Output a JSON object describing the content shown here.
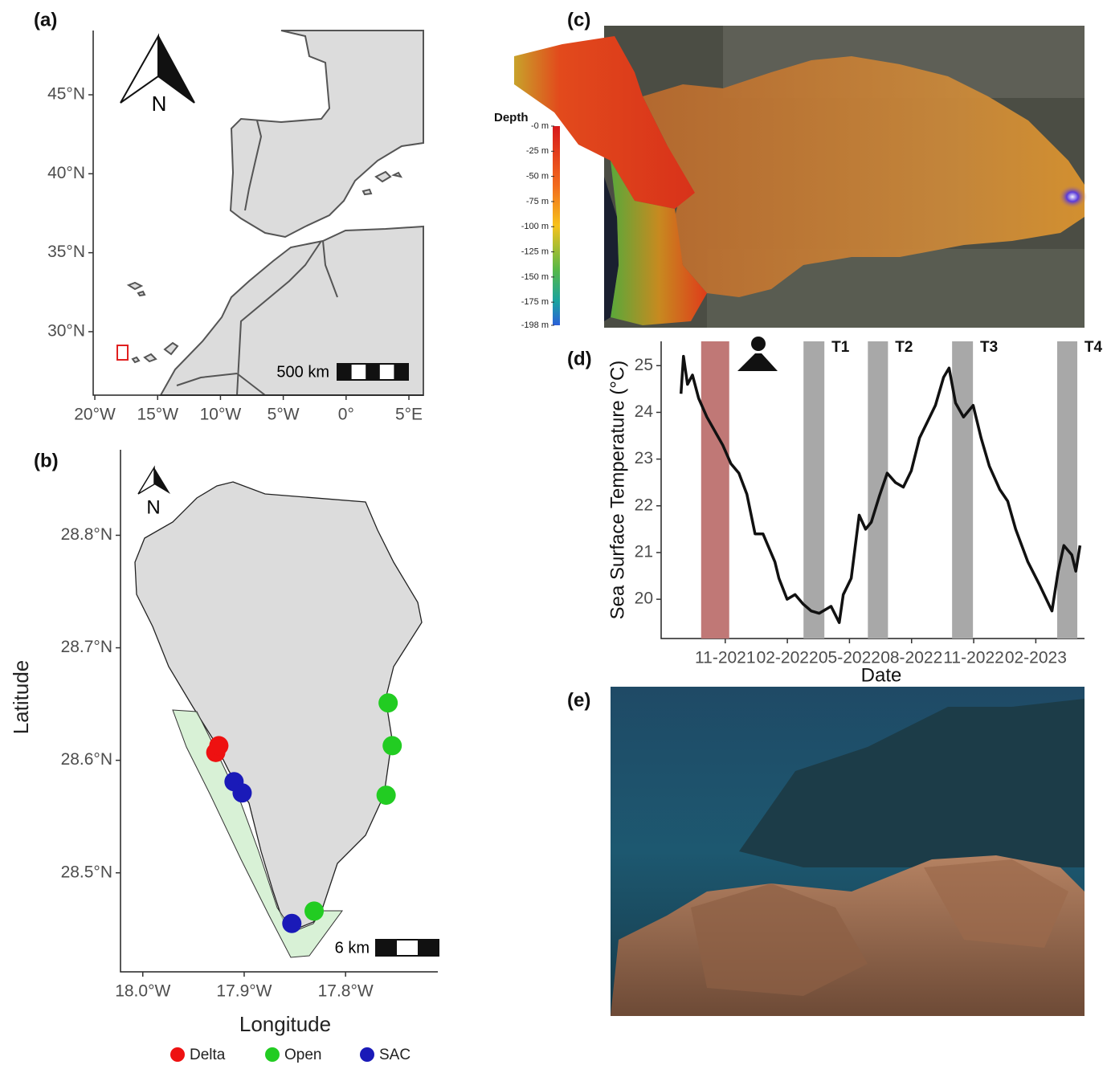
{
  "chart_data": [
    {
      "type": "map",
      "panel": "(a)",
      "north": "N",
      "scale_label": "500 km",
      "xlim": [
        -20.13,
        6.15
      ],
      "ylim": [
        25.98,
        49.07
      ],
      "xticks": [
        {
          "value": -20,
          "label": "20°W"
        },
        {
          "value": -15,
          "label": "15°W"
        },
        {
          "value": -10,
          "label": "10°W"
        },
        {
          "value": -5,
          "label": "5°W"
        },
        {
          "value": 0,
          "label": "0°"
        },
        {
          "value": 5,
          "label": "5°E"
        }
      ],
      "yticks": [
        {
          "value": 30,
          "label": "30°N"
        },
        {
          "value": 35,
          "label": "35°N"
        },
        {
          "value": 40,
          "label": "40°N"
        },
        {
          "value": 45,
          "label": "45°N"
        }
      ]
    },
    {
      "type": "scatter",
      "panel": "(b)",
      "north": "N",
      "scale_label": "6 km",
      "x_label": "Longitude",
      "y_label": "Latitude",
      "xlim": [
        -18.022,
        -17.709
      ],
      "ylim": [
        28.412,
        28.876
      ],
      "xticks": [
        {
          "value": -18.0,
          "label": "18.0°W"
        },
        {
          "value": -17.9,
          "label": "17.9°W"
        },
        {
          "value": -17.8,
          "label": "17.8°W"
        }
      ],
      "yticks": [
        {
          "value": 28.5,
          "label": "28.5°N"
        },
        {
          "value": 28.6,
          "label": "28.6°N"
        },
        {
          "value": 28.7,
          "label": "28.7°N"
        },
        {
          "value": 28.8,
          "label": "28.8°N"
        }
      ],
      "series": [
        {
          "name": "Delta",
          "color": "#ee1111",
          "x": [
            -17.928,
            -17.925
          ],
          "values": [
            28.607,
            28.613
          ]
        },
        {
          "name": "Open",
          "color": "#22cc22",
          "x": [
            -17.758,
            -17.754,
            -17.76,
            -17.831
          ],
          "values": [
            28.651,
            28.613,
            28.569,
            28.466
          ]
        },
        {
          "name": "SAC",
          "color": "#1a1ab8",
          "x": [
            -17.91,
            -17.902,
            -17.853
          ],
          "values": [
            28.581,
            28.571,
            28.455
          ]
        }
      ]
    },
    {
      "type": "image",
      "panel": "(c)",
      "legend_title": "Depth",
      "clim": [
        -198,
        0
      ],
      "colorbar_ticks": [
        {
          "value": 0,
          "label": "-0 m"
        },
        {
          "value": -25,
          "label": "-25 m"
        },
        {
          "value": -50,
          "label": "-50 m"
        },
        {
          "value": -75,
          "label": "-75 m"
        },
        {
          "value": -100,
          "label": "-100 m"
        },
        {
          "value": -125,
          "label": "-125 m"
        },
        {
          "value": -150,
          "label": "-150 m"
        },
        {
          "value": -175,
          "label": "-175 m"
        },
        {
          "value": -198,
          "label": "-198 m"
        }
      ]
    },
    {
      "type": "line",
      "panel": "(d)",
      "x_label": "Date",
      "y_label": "Sea Surface Temperature (°C)",
      "color": "#111111",
      "xlim": [
        2021.575,
        2023.279
      ],
      "ylim": [
        19.16,
        25.52
      ],
      "xticks": [
        {
          "value": 2021.833,
          "label": "11-2021"
        },
        {
          "value": 2022.083,
          "label": "02-2022"
        },
        {
          "value": 2022.333,
          "label": "05-2022"
        },
        {
          "value": 2022.583,
          "label": "08-2022"
        },
        {
          "value": 2022.833,
          "label": "11-2022"
        },
        {
          "value": 2023.083,
          "label": "02-2023"
        }
      ],
      "yticks": [
        20,
        21,
        22,
        23,
        24,
        25
      ],
      "eruption_period": [
        2021.736,
        2021.849
      ],
      "sampling_periods": [
        {
          "label": "T1",
          "range": [
            2022.148,
            2022.232
          ]
        },
        {
          "label": "T2",
          "range": [
            2022.407,
            2022.488
          ]
        },
        {
          "label": "T3",
          "range": [
            2022.746,
            2022.83
          ]
        },
        {
          "label": "T4",
          "range": [
            2023.169,
            2023.25
          ]
        }
      ],
      "x": [
        2021.655,
        2021.665,
        2021.681,
        2021.701,
        2021.726,
        2021.759,
        2021.791,
        2021.823,
        2021.856,
        2021.888,
        2021.92,
        2021.953,
        2021.985,
        2022.001,
        2022.033,
        2022.049,
        2022.082,
        2022.114,
        2022.146,
        2022.179,
        2022.211,
        2022.259,
        2022.292,
        2022.308,
        2022.34,
        2022.372,
        2022.398,
        2022.421,
        2022.453,
        2022.485,
        2022.518,
        2022.55,
        2022.582,
        2022.615,
        2022.647,
        2022.679,
        2022.712,
        2022.734,
        2022.76,
        2022.792,
        2022.831,
        2022.863,
        2022.896,
        2022.938,
        2022.97,
        2023.002,
        2023.051,
        2023.099,
        2023.148,
        2023.173,
        2023.196,
        2023.228,
        2023.244,
        2023.261
      ],
      "values": [
        24.4,
        25.2,
        24.6,
        24.8,
        24.3,
        23.9,
        23.6,
        23.3,
        22.9,
        22.7,
        22.25,
        21.4,
        21.4,
        21.2,
        20.8,
        20.45,
        20.0,
        20.1,
        19.9,
        19.75,
        19.7,
        19.85,
        19.5,
        20.1,
        20.45,
        21.8,
        21.5,
        21.65,
        22.2,
        22.7,
        22.5,
        22.4,
        22.75,
        23.45,
        23.8,
        24.15,
        24.75,
        24.95,
        24.2,
        23.9,
        24.15,
        23.45,
        22.85,
        22.35,
        22.1,
        21.5,
        20.8,
        20.3,
        19.75,
        20.6,
        21.15,
        20.95,
        20.6,
        21.15
      ]
    },
    {
      "type": "image",
      "panel": "(e)"
    }
  ]
}
